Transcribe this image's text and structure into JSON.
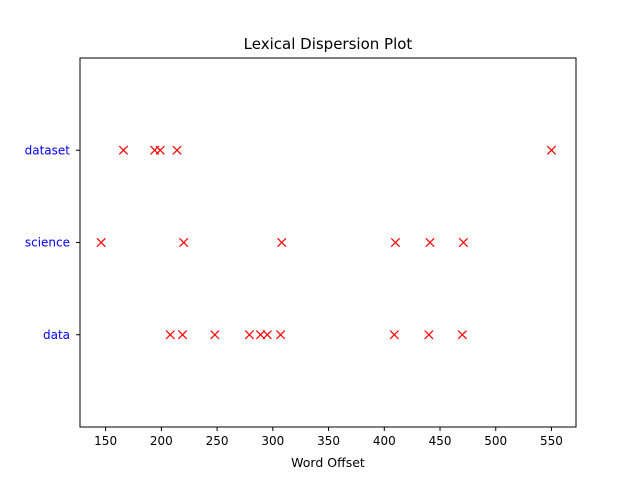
{
  "chart_data": {
    "type": "scatter",
    "title": "Lexical Dispersion Plot",
    "xlabel": "Word Offset",
    "ylabel": "",
    "xlim": [
      127,
      572
    ],
    "x_ticks": [
      150,
      200,
      250,
      300,
      350,
      400,
      450,
      500,
      550
    ],
    "categories": [
      "data",
      "science",
      "dataset"
    ],
    "marker": "x",
    "marker_color": "#ff0000",
    "category_label_color": "#0000ff",
    "grid": false,
    "series": [
      {
        "name": "data",
        "x": [
          208,
          219,
          248,
          279,
          289,
          295,
          307,
          409,
          440,
          470
        ]
      },
      {
        "name": "science",
        "x": [
          146,
          220,
          308,
          410,
          441,
          471
        ]
      },
      {
        "name": "dataset",
        "x": [
          166,
          194,
          199,
          214,
          550
        ]
      }
    ]
  }
}
